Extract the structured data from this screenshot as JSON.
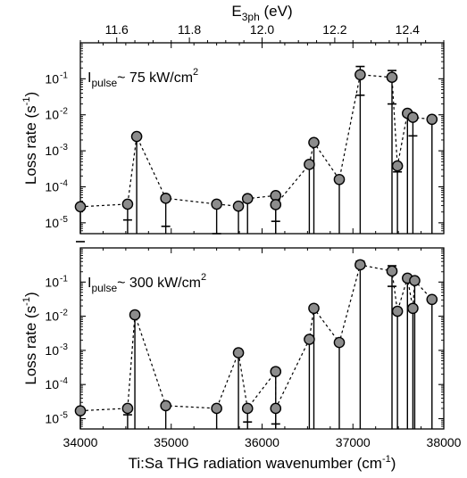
{
  "chart_data": [
    {
      "type": "scatter",
      "panel": "top",
      "annotation": {
        "prefix": "I",
        "subscript": "pulse",
        "middle": "~ 75 kW/cm",
        "superscript": "2"
      },
      "ylabel": "Loss rate (s",
      "ylabel_exp": "-1",
      "yscale": "log",
      "ylim": [
        5e-06,
        1
      ],
      "yticks": [
        {
          "value": 1e-05,
          "exp": "-5"
        },
        {
          "value": 0.0001,
          "exp": "-4"
        },
        {
          "value": 0.001,
          "exp": "-3"
        },
        {
          "value": 0.01,
          "exp": "-2"
        },
        {
          "value": 0.1,
          "exp": "-1"
        }
      ],
      "xlim": [
        34000,
        38000
      ],
      "top_axis": {
        "label": "E",
        "label_sub": "3ph",
        "label_unit": " (eV)",
        "ticks": [
          "11.6",
          "11.8",
          "12.0",
          "12.2",
          "12.4"
        ],
        "tick_values": [
          11.6,
          11.8,
          12.0,
          12.2,
          12.4
        ],
        "range": [
          11.5,
          12.5
        ]
      },
      "points": [
        {
          "x": 34000,
          "y": 2.8e-05,
          "err_lo": 3e-06
        },
        {
          "x": 34520,
          "y": 3.3e-05,
          "err_lo": 1.2e-05
        },
        {
          "x": 34620,
          "y": 0.0025
        },
        {
          "x": 34940,
          "y": 4.8e-05,
          "err_lo": 8e-06
        },
        {
          "x": 35500,
          "y": 3.3e-05,
          "err_lo": 5e-06
        },
        {
          "x": 35740,
          "y": 2.9e-05
        },
        {
          "x": 35840,
          "y": 4.7e-05
        },
        {
          "x": 36150,
          "y": 5.7e-05,
          "err_lo": 1.1e-05
        },
        {
          "x": 36150,
          "y": 3.2e-05
        },
        {
          "x": 36520,
          "y": 0.00042
        },
        {
          "x": 36570,
          "y": 0.0017
        },
        {
          "x": 36850,
          "y": 0.00016
        },
        {
          "x": 37080,
          "y": 0.13,
          "err_hi": 0.22,
          "err_lo": 0.035
        },
        {
          "x": 37430,
          "y": 0.11,
          "err_hi": 0.17,
          "err_lo": 0.02
        },
        {
          "x": 37490,
          "y": 0.00038,
          "err_lo": 0.00026
        },
        {
          "x": 37600,
          "y": 0.011
        },
        {
          "x": 37660,
          "y": 0.0085,
          "err_hi": 0.01,
          "err_lo": 0.0026
        },
        {
          "x": 37870,
          "y": 0.0075
        }
      ]
    },
    {
      "type": "scatter",
      "panel": "bottom",
      "annotation": {
        "prefix": "I",
        "subscript": "pulse",
        "middle": "~ 300 kW/cm",
        "superscript": "2"
      },
      "ylabel": "Loss rate (s",
      "ylabel_exp": "-1",
      "yscale": "log",
      "ylim": [
        5e-06,
        1
      ],
      "yticks": [
        {
          "value": 1e-05,
          "exp": "-5"
        },
        {
          "value": 0.0001,
          "exp": "-4"
        },
        {
          "value": 0.001,
          "exp": "-3"
        },
        {
          "value": 0.01,
          "exp": "-2"
        },
        {
          "value": 0.1,
          "exp": "-1"
        }
      ],
      "xlim": [
        34000,
        38000
      ],
      "xlabel": "Ti:Sa THG radiation wavenumber (cm",
      "xlabel_exp": "-1",
      "xticks": [
        "34000",
        "35000",
        "36000",
        "37000",
        "38000"
      ],
      "xtick_values": [
        34000,
        35000,
        36000,
        37000,
        38000
      ],
      "points": [
        {
          "x": 34000,
          "y": 1.7e-05,
          "err_lo": 1.5e-05
        },
        {
          "x": 34520,
          "y": 2e-05,
          "err_lo": 1.3e-05
        },
        {
          "x": 34600,
          "y": 0.011
        },
        {
          "x": 34940,
          "y": 2.4e-05
        },
        {
          "x": 35500,
          "y": 2e-05
        },
        {
          "x": 35740,
          "y": 0.00085
        },
        {
          "x": 35840,
          "y": 2e-05,
          "err_lo": 8e-06
        },
        {
          "x": 36150,
          "y": 0.00024
        },
        {
          "x": 36150,
          "y": 2e-05,
          "err_lo": 7e-06
        },
        {
          "x": 36520,
          "y": 0.0021
        },
        {
          "x": 36570,
          "y": 0.017
        },
        {
          "x": 36850,
          "y": 0.0017
        },
        {
          "x": 37080,
          "y": 0.32,
          "err_hi": 0.41
        },
        {
          "x": 37430,
          "y": 0.21,
          "err_hi": 0.3,
          "err_lo": 0.075
        },
        {
          "x": 37490,
          "y": 0.014
        },
        {
          "x": 37600,
          "y": 0.13
        },
        {
          "x": 37660,
          "y": 0.017
        },
        {
          "x": 37680,
          "y": 0.11
        },
        {
          "x": 37870,
          "y": 0.031
        }
      ]
    }
  ]
}
